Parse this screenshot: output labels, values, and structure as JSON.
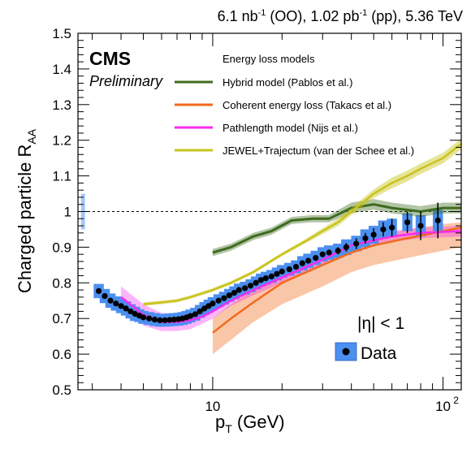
{
  "chart_data": {
    "type": "scatter",
    "header": [
      "6.1 nb",
      "-1",
      " (OO), 1.02 pb",
      "-1",
      " (pp), 5.36 TeV"
    ],
    "cms_label": "CMS",
    "preliminary_label": "Preliminary",
    "legend_title": "Energy loss models",
    "xlabel_main": "p",
    "xlabel_sub": "T",
    "xlabel_unit": " (GeV)",
    "ylabel_main": "Charged particle R",
    "ylabel_sub": "AA",
    "eta_text": "|η| < 1",
    "data_legend": "Data",
    "x_scale": "log",
    "xlim": [
      2.6,
      120
    ],
    "ylim": [
      0.5,
      1.5
    ],
    "x_tick_labels": [
      "10",
      "10"
    ],
    "x_tick_label_sup": "2",
    "y_ticks": [
      "0.5",
      "0.6",
      "0.7",
      "0.8",
      "0.9",
      "1",
      "1.1",
      "1.2",
      "1.3",
      "1.4",
      "1.5"
    ],
    "reference_line": 1.0,
    "norm_uncertainty": [
      0.95,
      1.05
    ],
    "colors": {
      "data_marker": "#000000",
      "data_syst": "#4b8ff0",
      "norm_box": "#a6c8f5",
      "hybrid": "#3e6b1e",
      "coherent": "#f26a1b",
      "pathlength": "#f52cf0",
      "jewel": "#c8c41c"
    },
    "series": [
      {
        "name": "Hybrid model (Pablos et al.)",
        "color": "#3e6b1e",
        "x": [
          10,
          12,
          15,
          18,
          22,
          27,
          32,
          40,
          50,
          60,
          80,
          100,
          120
        ],
        "y": [
          0.885,
          0.9,
          0.93,
          0.945,
          0.975,
          0.98,
          0.98,
          1.01,
          1.02,
          1.01,
          1.0,
          1.01,
          1.01
        ],
        "band": [
          0.01,
          0.01,
          0.01,
          0.01,
          0.01,
          0.01,
          0.01,
          0.015,
          0.015,
          0.015,
          0.015,
          0.015,
          0.015
        ]
      },
      {
        "name": "Coherent energy loss (Takacs et al.)",
        "color": "#f26a1b",
        "x": [
          10,
          12,
          15,
          20,
          30,
          40,
          50,
          70,
          100,
          120
        ],
        "y": [
          0.66,
          0.7,
          0.745,
          0.8,
          0.85,
          0.885,
          0.905,
          0.925,
          0.945,
          0.955
        ],
        "band_lo": [
          0.6,
          0.64,
          0.69,
          0.74,
          0.79,
          0.83,
          0.85,
          0.87,
          0.89,
          0.9
        ],
        "band_hi": [
          0.7,
          0.74,
          0.78,
          0.83,
          0.88,
          0.91,
          0.93,
          0.95,
          0.965,
          0.97
        ]
      },
      {
        "name": "Pathlength model (Nijs et al.)",
        "color": "#f52cf0",
        "x": [
          4,
          5,
          6,
          7,
          8,
          9,
          10,
          12,
          15,
          20,
          30,
          40,
          60,
          80,
          120
        ],
        "y": [
          0.76,
          0.71,
          0.69,
          0.69,
          0.695,
          0.705,
          0.72,
          0.75,
          0.78,
          0.815,
          0.865,
          0.905,
          0.93,
          0.94,
          0.945
        ],
        "band": [
          0.03,
          0.03,
          0.025,
          0.025,
          0.025,
          0.02,
          0.02,
          0.015,
          0.015,
          0.015,
          0.015,
          0.015,
          0.015,
          0.015,
          0.015
        ]
      },
      {
        "name": "JEWEL+Trajectum (van der Schee et al.)",
        "color": "#c8c41c",
        "x": [
          5,
          6,
          7,
          8,
          10,
          12,
          15,
          20,
          25,
          30,
          35,
          40,
          50,
          60,
          70,
          80,
          100,
          120
        ],
        "y": [
          0.74,
          0.745,
          0.75,
          0.76,
          0.78,
          0.8,
          0.83,
          0.88,
          0.915,
          0.945,
          0.97,
          1.0,
          1.05,
          1.08,
          1.1,
          1.12,
          1.15,
          1.19
        ],
        "band": [
          0.005,
          0.005,
          0.005,
          0.005,
          0.005,
          0.005,
          0.005,
          0.005,
          0.006,
          0.008,
          0.01,
          0.01,
          0.012,
          0.015,
          0.015,
          0.015,
          0.015,
          0.015
        ]
      },
      {
        "name": "Data",
        "color": "#000000",
        "x": [
          3.2,
          3.4,
          3.6,
          3.8,
          4.0,
          4.2,
          4.4,
          4.6,
          4.8,
          5.0,
          5.3,
          5.6,
          5.9,
          6.2,
          6.5,
          6.8,
          7.1,
          7.4,
          7.7,
          8.0,
          8.4,
          8.8,
          9.2,
          9.6,
          10.0,
          10.6,
          11.2,
          11.8,
          12.4,
          13.0,
          13.8,
          14.6,
          15.4,
          16.2,
          17.0,
          18.0,
          19.0,
          20.0,
          21.5,
          23.0,
          24.5,
          26.0,
          28.0,
          30.0,
          32.0,
          35.0,
          38.0,
          42.0,
          46.0,
          50.0,
          55.0,
          60.0,
          70.0,
          80.0,
          95.0
        ],
        "y": [
          0.777,
          0.763,
          0.75,
          0.742,
          0.735,
          0.728,
          0.72,
          0.713,
          0.708,
          0.703,
          0.7,
          0.697,
          0.695,
          0.695,
          0.696,
          0.697,
          0.698,
          0.7,
          0.703,
          0.707,
          0.712,
          0.72,
          0.728,
          0.735,
          0.742,
          0.75,
          0.757,
          0.765,
          0.772,
          0.78,
          0.785,
          0.792,
          0.8,
          0.808,
          0.813,
          0.818,
          0.825,
          0.832,
          0.838,
          0.845,
          0.855,
          0.862,
          0.87,
          0.88,
          0.885,
          0.89,
          0.9,
          0.91,
          0.925,
          0.935,
          0.95,
          0.955,
          0.97,
          0.96,
          0.975
        ],
        "syst": [
          0.02,
          0.02,
          0.02,
          0.02,
          0.02,
          0.02,
          0.02,
          0.02,
          0.018,
          0.018,
          0.018,
          0.018,
          0.018,
          0.018,
          0.018,
          0.018,
          0.018,
          0.018,
          0.018,
          0.018,
          0.018,
          0.018,
          0.018,
          0.018,
          0.018,
          0.018,
          0.018,
          0.018,
          0.018,
          0.018,
          0.018,
          0.018,
          0.018,
          0.018,
          0.018,
          0.018,
          0.018,
          0.018,
          0.018,
          0.018,
          0.02,
          0.02,
          0.02,
          0.02,
          0.02,
          0.02,
          0.022,
          0.022,
          0.025,
          0.025,
          0.025,
          0.025,
          0.025,
          0.03,
          0.03
        ],
        "stat": [
          0.005,
          0.005,
          0.005,
          0.005,
          0.005,
          0.005,
          0.005,
          0.005,
          0.005,
          0.005,
          0.005,
          0.005,
          0.005,
          0.005,
          0.005,
          0.005,
          0.005,
          0.005,
          0.005,
          0.005,
          0.005,
          0.005,
          0.005,
          0.005,
          0.005,
          0.005,
          0.005,
          0.005,
          0.005,
          0.005,
          0.005,
          0.005,
          0.005,
          0.005,
          0.005,
          0.005,
          0.005,
          0.005,
          0.005,
          0.005,
          0.006,
          0.006,
          0.007,
          0.008,
          0.008,
          0.01,
          0.012,
          0.015,
          0.015,
          0.018,
          0.02,
          0.025,
          0.03,
          0.04,
          0.05
        ]
      }
    ]
  }
}
